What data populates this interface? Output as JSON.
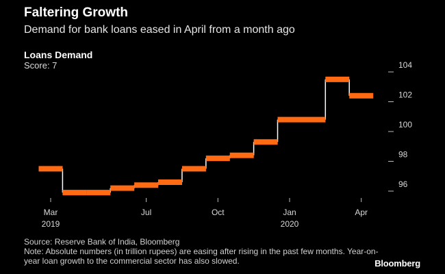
{
  "header": {
    "title": "Faltering Growth",
    "subtitle": "Demand for bank loans eased in April from a month ago"
  },
  "series_header": {
    "name": "Loans Demand",
    "score": "Score: 7"
  },
  "footer": {
    "source": "Source: Reserve Bank of India, Bloomberg",
    "note": "Note: Absolute numbers (in trillion rupees) are easing after rising in the past few months. Year-on-year loan growth to the commercial sector has also slowed.",
    "brand": "Bloomberg"
  },
  "colors": {
    "line": "#ff6a13",
    "riser": "#ffffff",
    "axis": "#bdbdbd",
    "background": "#000000"
  },
  "chart_data": {
    "type": "line",
    "style": "step",
    "title": "Loans Demand",
    "xlabel": "",
    "ylabel": "",
    "ylim": [
      95.3,
      104.7
    ],
    "yticks": [
      96,
      98,
      100,
      102,
      104
    ],
    "y_axis_side": "right",
    "x_tick_labels": [
      {
        "index": 0,
        "label": "Mar",
        "sub": "2019"
      },
      {
        "index": 4,
        "label": "Jul",
        "sub": ""
      },
      {
        "index": 7,
        "label": "Oct",
        "sub": ""
      },
      {
        "index": 10,
        "label": "Jan",
        "sub": "2020"
      },
      {
        "index": 13,
        "label": "Apr",
        "sub": ""
      }
    ],
    "series": [
      {
        "name": "Loans Demand",
        "x": [
          "Mar 2019",
          "Apr 2019",
          "May 2019",
          "Jun 2019",
          "Jul 2019",
          "Aug 2019",
          "Sep 2019",
          "Oct 2019",
          "Nov 2019",
          "Dec 2019",
          "Jan 2020",
          "Feb 2020",
          "Mar 2020",
          "Apr 2020"
        ],
        "values": [
          97.5,
          95.9,
          95.9,
          96.2,
          96.4,
          96.6,
          97.5,
          98.2,
          98.4,
          99.3,
          100.8,
          100.8,
          103.5,
          102.4
        ]
      }
    ]
  }
}
